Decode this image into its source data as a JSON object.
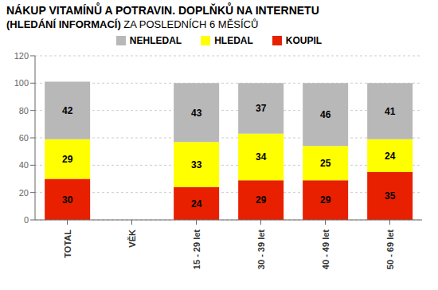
{
  "chart_data": {
    "type": "bar",
    "stacked": true,
    "title": "NÁKUP VITAMÍNŮ A POTRAVIN. DOPLŇKŮ NA INTERNETU",
    "subtitle": "(HLEDÁNÍ INFORMACÍ) ZA POSLEDNÍCH 6 MĚSÍCŮ",
    "categories": [
      "TOTAL",
      "VĚK",
      "15 - 29 let",
      "30 - 39 let",
      "40 - 49 let",
      "50 - 69 let"
    ],
    "series": [
      {
        "name": "KOUPIL",
        "color": "#e82000",
        "values": [
          30,
          0,
          24,
          29,
          29,
          35
        ]
      },
      {
        "name": "HLEDAL",
        "color": "#ffff00",
        "values": [
          29,
          0,
          33,
          34,
          25,
          24
        ]
      },
      {
        "name": "NEHLEDAL",
        "color": "#b8b8b8",
        "values": [
          42,
          0,
          43,
          37,
          46,
          41
        ]
      }
    ],
    "ylim": [
      0,
      120
    ],
    "yticks": [
      0,
      20,
      40,
      60,
      80,
      100,
      120
    ],
    "grid": true,
    "data_labels": true
  }
}
